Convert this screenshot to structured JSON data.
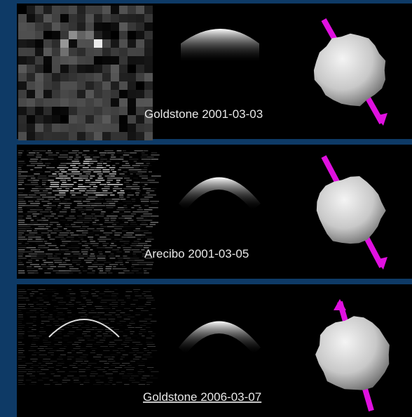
{
  "panels": [
    {
      "caption": "Goldstone 2001-03-03"
    },
    {
      "caption": "Arecibo 2001-03-05"
    },
    {
      "caption": "Goldstone 2006-03-07"
    }
  ]
}
